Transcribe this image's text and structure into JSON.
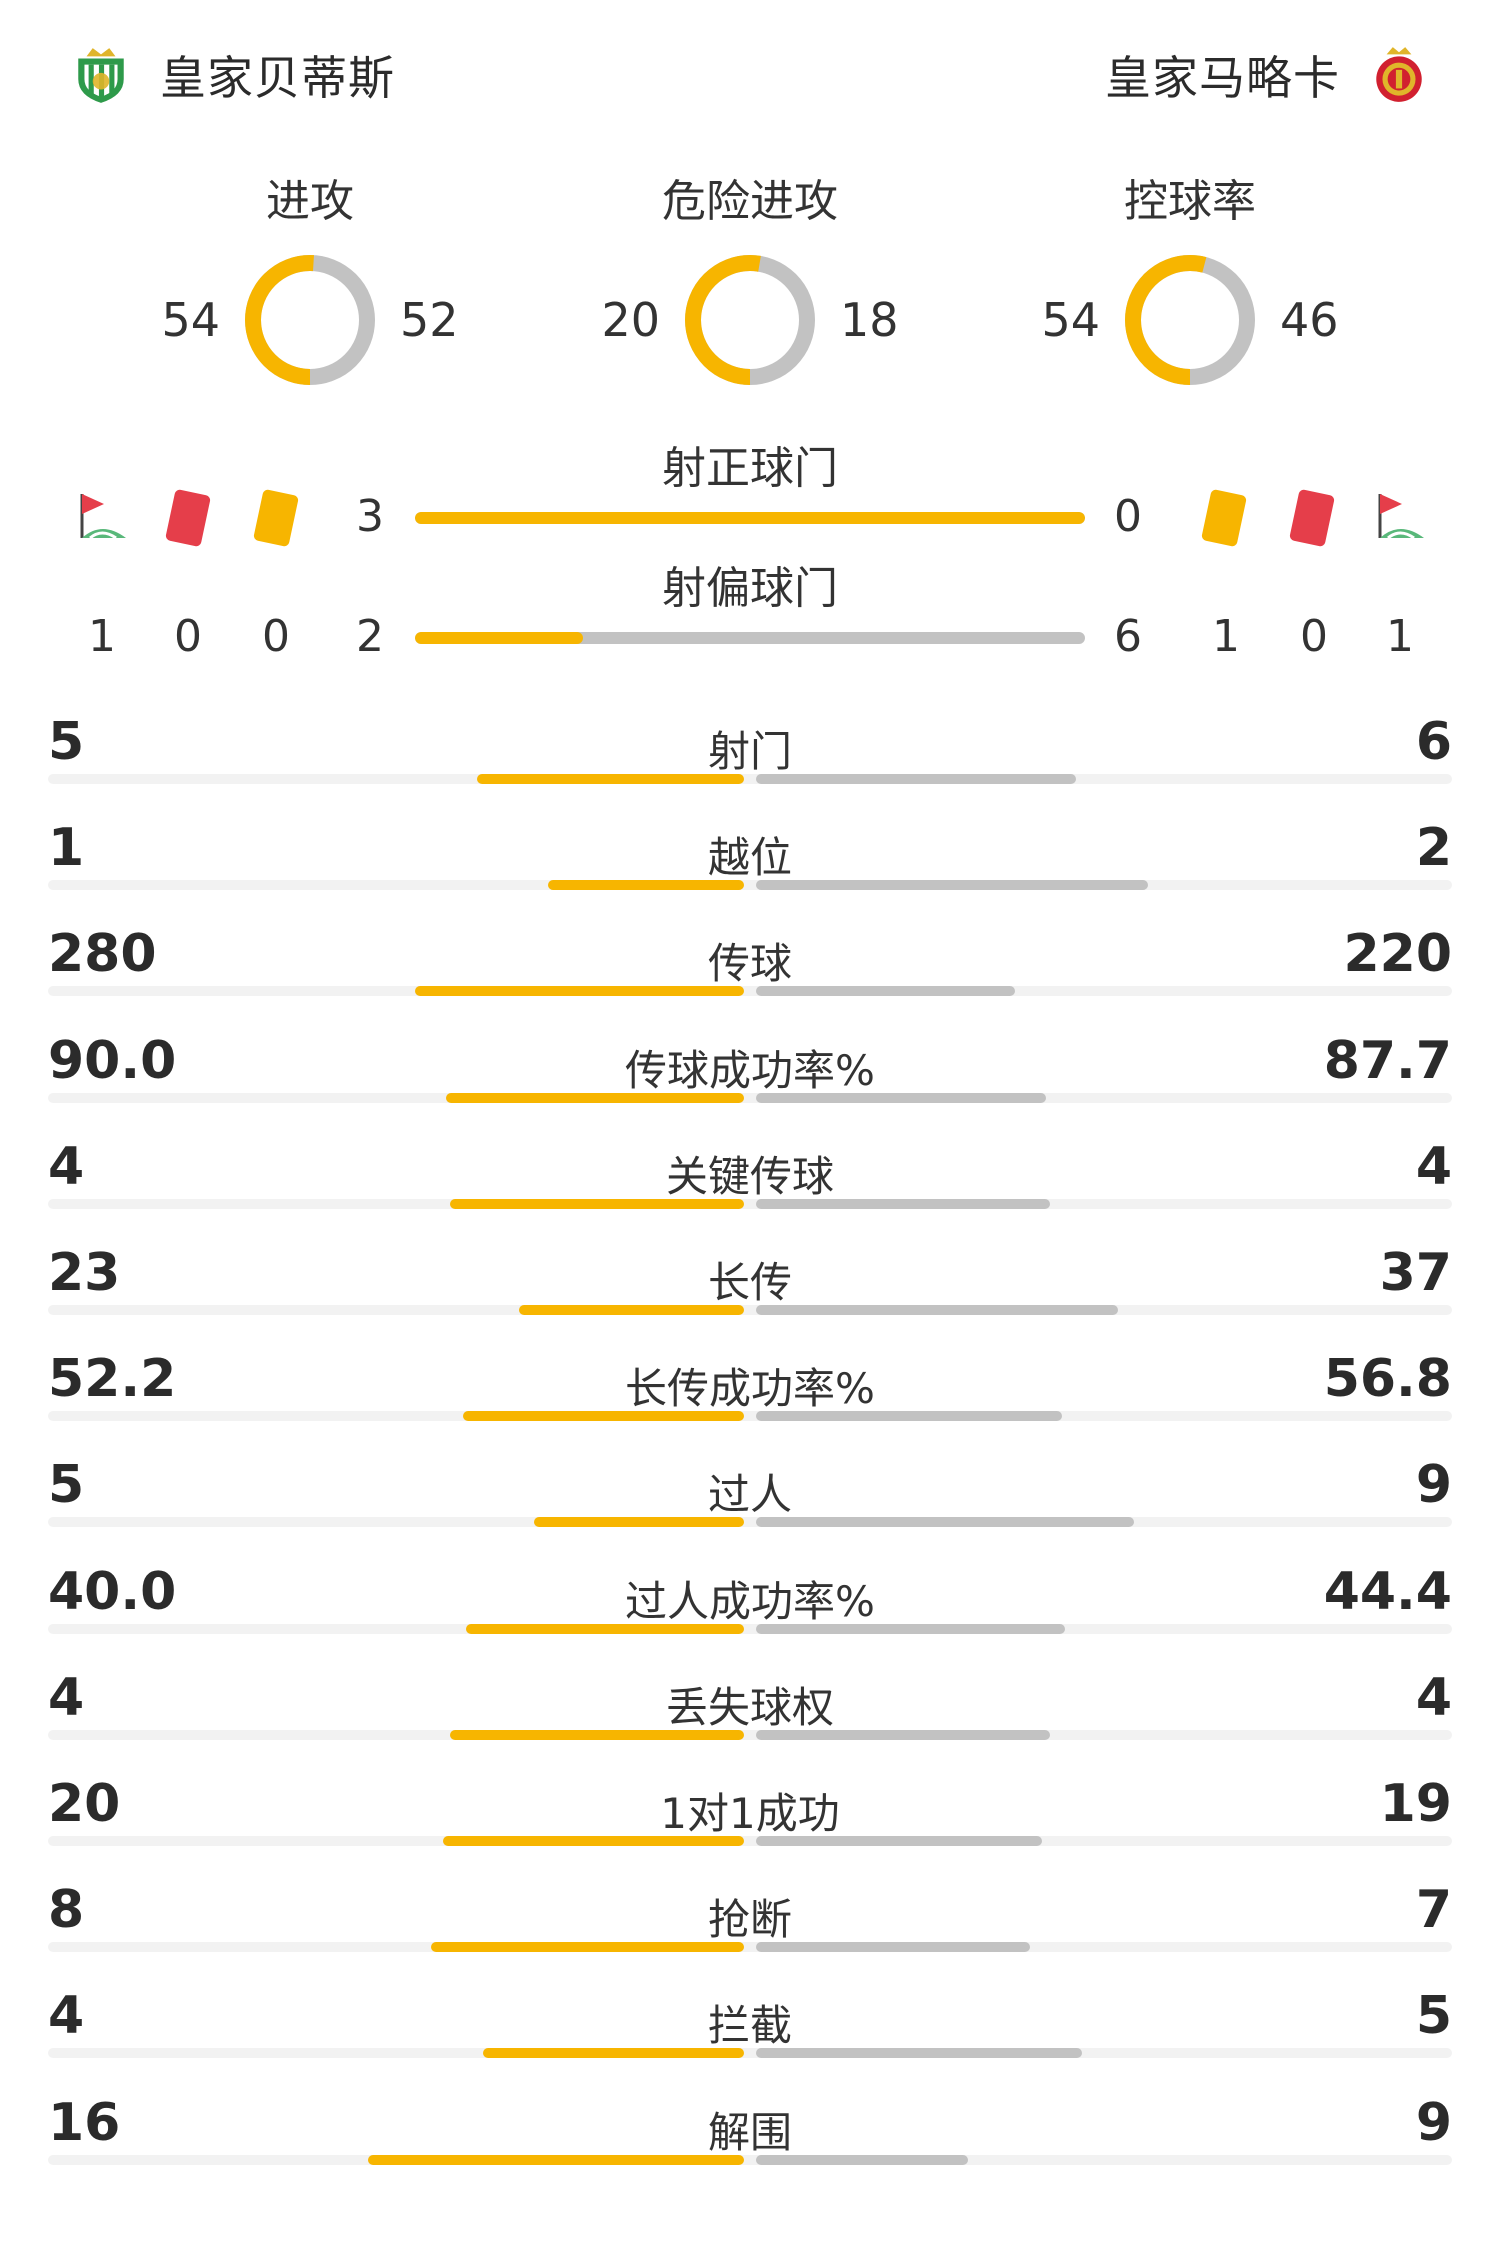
{
  "header": {
    "home_team": "皇家贝蒂斯",
    "away_team": "皇家马略卡",
    "home_crest": "real-betis-crest",
    "away_crest": "mallorca-crest"
  },
  "colors": {
    "home": "#f7b500",
    "away": "#c2c2c2",
    "track": "#f2f2f2",
    "red_card": "#e53e4a",
    "yellow_card": "#f7b500"
  },
  "donuts": [
    {
      "id": "attack",
      "title": "进攻",
      "home": "54",
      "away": "52",
      "home_value": 54,
      "away_value": 52
    },
    {
      "id": "dangerous-attack",
      "title": "危险进攻",
      "home": "20",
      "away": "18",
      "home_value": 20,
      "away_value": 18
    },
    {
      "id": "possession",
      "title": "控球率",
      "home": "54",
      "away": "46",
      "home_value": 54,
      "away_value": 46
    }
  ],
  "shots_on_target": {
    "title": "射正球门",
    "home": "3",
    "away": "0",
    "home_value": 3,
    "away_value": 0
  },
  "shots_off_target": {
    "title": "射偏球门",
    "home": "2",
    "away": "6",
    "home_value": 2,
    "away_value": 6
  },
  "disciplinary": {
    "home": {
      "corners": "1",
      "red_cards": "0",
      "yellow_cards": "0"
    },
    "away": {
      "yellow_cards": "1",
      "red_cards": "0",
      "corners": "1"
    },
    "icons": [
      "corner-flag-icon",
      "red-card-icon",
      "yellow-card-icon"
    ]
  },
  "stats": [
    {
      "label": "射门",
      "home": "5",
      "away": "6",
      "home_value": 5,
      "away_value": 6
    },
    {
      "label": "越位",
      "home": "1",
      "away": "2",
      "home_value": 1,
      "away_value": 2
    },
    {
      "label": "传球",
      "home": "280",
      "away": "220",
      "home_value": 280,
      "away_value": 220
    },
    {
      "label": "传球成功率%",
      "home": "90.0",
      "away": "87.7",
      "home_value": 90.0,
      "away_value": 87.7
    },
    {
      "label": "关键传球",
      "home": "4",
      "away": "4",
      "home_value": 4,
      "away_value": 4
    },
    {
      "label": "长传",
      "home": "23",
      "away": "37",
      "home_value": 23,
      "away_value": 37
    },
    {
      "label": "长传成功率%",
      "home": "52.2",
      "away": "56.8",
      "home_value": 52.2,
      "away_value": 56.8
    },
    {
      "label": "过人",
      "home": "5",
      "away": "9",
      "home_value": 5,
      "away_value": 9
    },
    {
      "label": "过人成功率%",
      "home": "40.0",
      "away": "44.4",
      "home_value": 40.0,
      "away_value": 44.4
    },
    {
      "label": "丢失球权",
      "home": "4",
      "away": "4",
      "home_value": 4,
      "away_value": 4
    },
    {
      "label": "1对1成功",
      "home": "20",
      "away": "19",
      "home_value": 20,
      "away_value": 19
    },
    {
      "label": "抢断",
      "home": "8",
      "away": "7",
      "home_value": 8,
      "away_value": 7
    },
    {
      "label": "拦截",
      "home": "4",
      "away": "5",
      "home_value": 4,
      "away_value": 5
    },
    {
      "label": "解围",
      "home": "16",
      "away": "9",
      "home_value": 16,
      "away_value": 9
    }
  ]
}
